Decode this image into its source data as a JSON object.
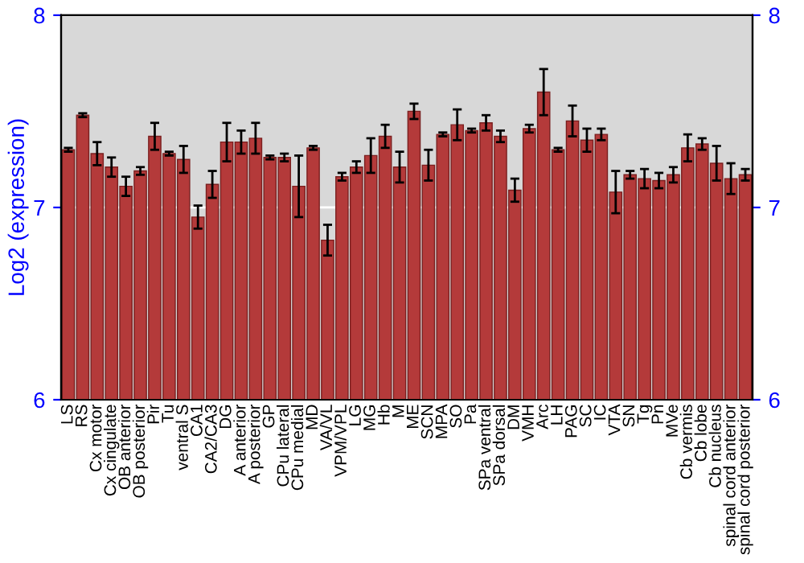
{
  "chart_data": {
    "type": "bar",
    "ylabel": "Log2 (expression)",
    "categories": [
      "LS",
      "RS",
      "Cx motor",
      "Cx cingulate",
      "OB anterior",
      "OB posterior",
      "Pir",
      "Tu",
      "ventral S",
      "CA1",
      "CA2/CA3",
      "DG",
      "A anterior",
      "A posterior",
      "GP",
      "CPu lateral",
      "CPu medial",
      "MD",
      "VA/VL",
      "VPM/VPL",
      "LG",
      "MG",
      "Hb",
      "M",
      "ME",
      "SCN",
      "MPA",
      "SO",
      "Pa",
      "SPa ventral",
      "SPa dorsal",
      "DM",
      "VMH",
      "Arc",
      "LH",
      "PAG",
      "SC",
      "IC",
      "VTA",
      "SN",
      "Tg",
      "Pn",
      "MVe",
      "Cb vermis",
      "Cb lobe",
      "Cb nucleus",
      "spinal cord anterior",
      "spinal cord posterior"
    ],
    "values": [
      7.3,
      7.48,
      7.28,
      7.21,
      7.11,
      7.19,
      7.37,
      7.28,
      7.25,
      6.95,
      7.12,
      7.34,
      7.34,
      7.36,
      7.26,
      7.26,
      7.11,
      7.31,
      6.83,
      7.16,
      7.21,
      7.27,
      7.37,
      7.21,
      7.5,
      7.22,
      7.38,
      7.43,
      7.4,
      7.44,
      7.37,
      7.09,
      7.41,
      7.6,
      7.3,
      7.45,
      7.35,
      7.38,
      7.08,
      7.17,
      7.15,
      7.14,
      7.17,
      7.31,
      7.33,
      7.23,
      7.15,
      7.17
    ],
    "errors": [
      0.01,
      0.01,
      0.06,
      0.05,
      0.05,
      0.02,
      0.07,
      0.01,
      0.07,
      0.06,
      0.07,
      0.1,
      0.06,
      0.08,
      0.01,
      0.02,
      0.16,
      0.01,
      0.08,
      0.02,
      0.03,
      0.09,
      0.06,
      0.08,
      0.04,
      0.08,
      0.01,
      0.08,
      0.01,
      0.04,
      0.03,
      0.06,
      0.02,
      0.12,
      0.01,
      0.08,
      0.06,
      0.03,
      0.11,
      0.02,
      0.05,
      0.04,
      0.04,
      0.07,
      0.03,
      0.09,
      0.08,
      0.03
    ],
    "color": "#b43a3a",
    "ylim": [
      6,
      8
    ],
    "yticks": [
      6,
      7,
      8
    ],
    "y2lim": [
      6,
      8
    ],
    "y2ticks": [
      6,
      7,
      8
    ],
    "grid": "y"
  }
}
